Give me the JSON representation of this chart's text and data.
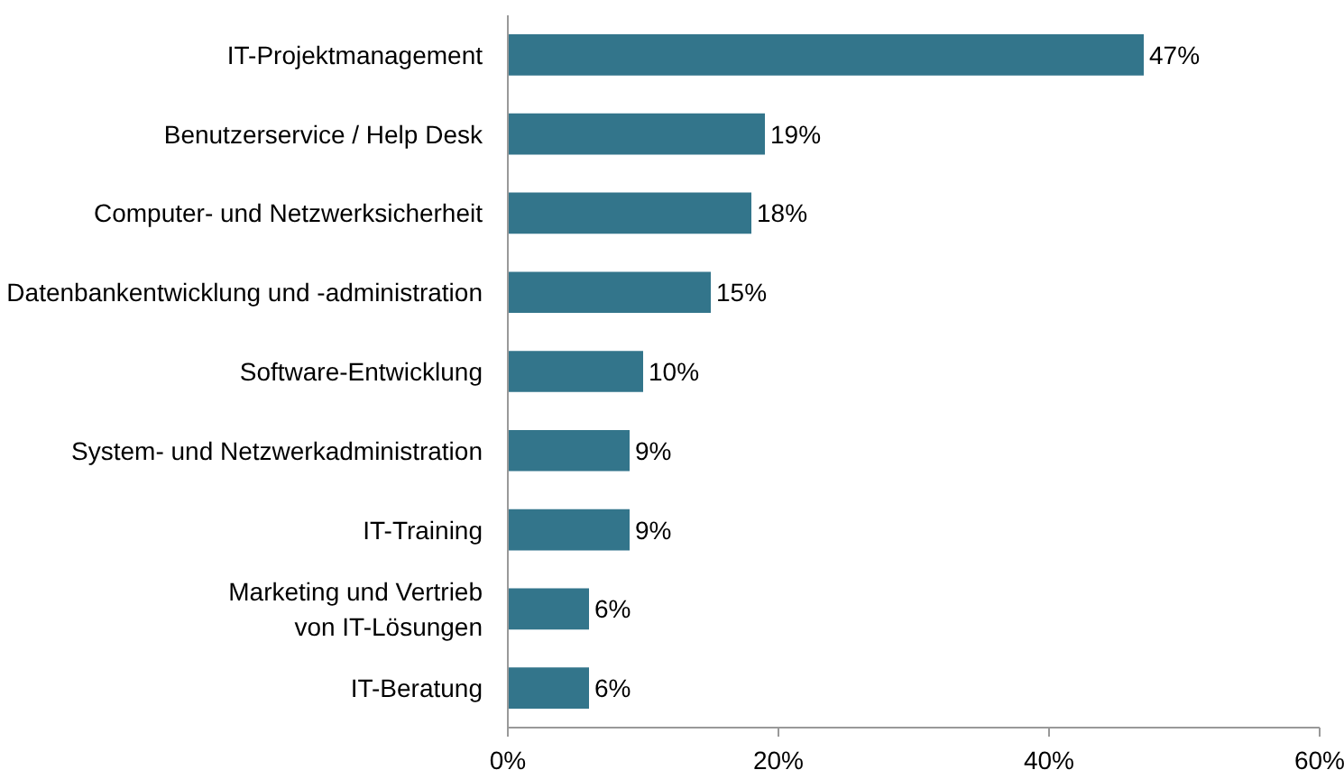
{
  "chart_data": {
    "type": "bar",
    "orientation": "horizontal",
    "categories": [
      "IT-Projektmanagement",
      "Benutzerservice / Help Desk",
      "Computer- und Netzwerksicherheit",
      "Datenbankentwicklung und -administration",
      "Software-Entwicklung",
      "System- und Netzwerkadministration",
      "IT-Training",
      "Marketing und Vertrieb\nvon IT-Lösungen",
      "IT-Beratung"
    ],
    "values": [
      47,
      19,
      18,
      15,
      10,
      9,
      9,
      6,
      6
    ],
    "value_labels": [
      "47%",
      "19%",
      "18%",
      "15%",
      "10%",
      "9%",
      "9%",
      "6%",
      "6%"
    ],
    "color": "#33758b",
    "xlim": [
      0,
      60
    ],
    "xticks": [
      {
        "value": 0,
        "label": "0%"
      },
      {
        "value": 20,
        "label": "20%"
      },
      {
        "value": 40,
        "label": "40%"
      },
      {
        "value": 60,
        "label": "60%"
      }
    ]
  }
}
